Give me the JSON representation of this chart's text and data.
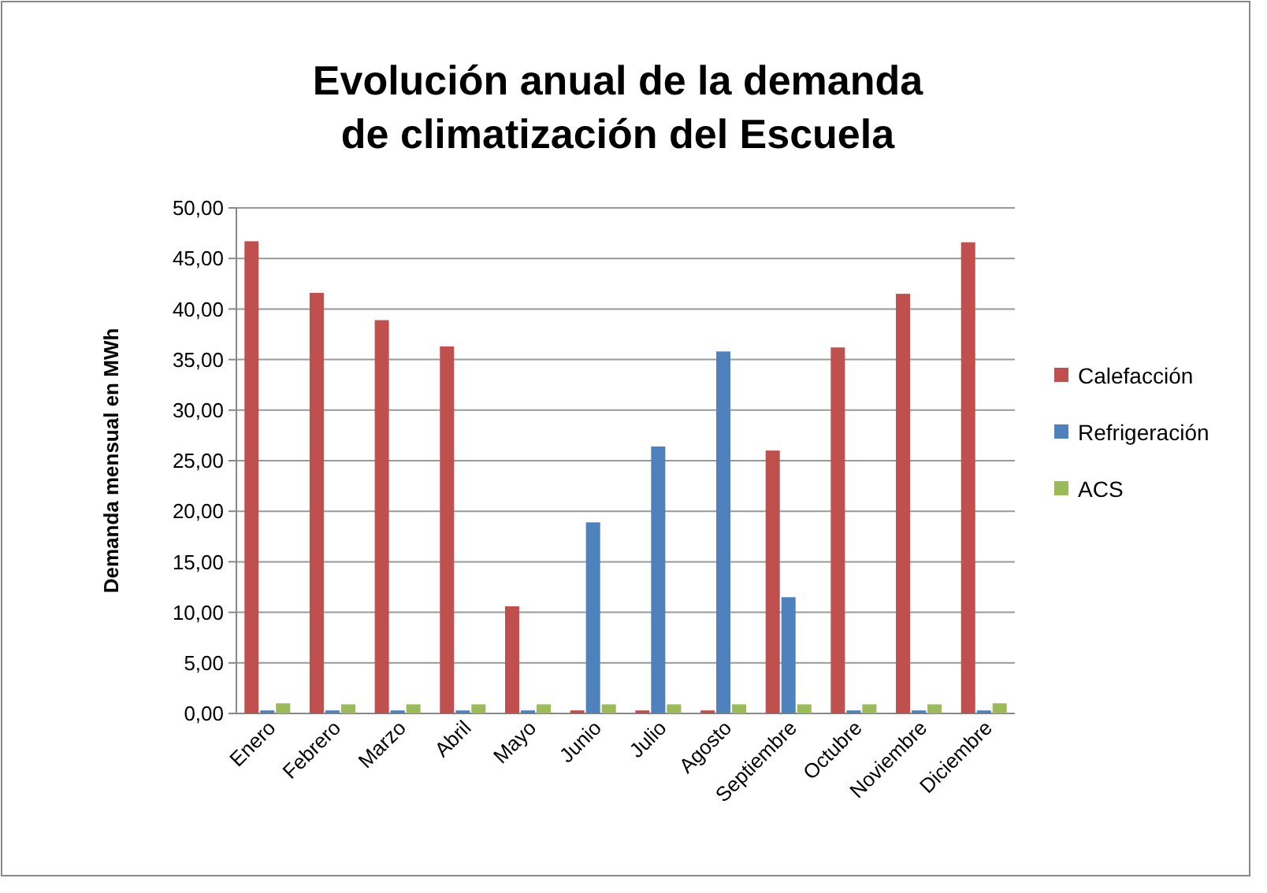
{
  "chart_data": {
    "type": "bar",
    "title": "Evolución anual de la demanda de climatización del Escuela",
    "ylabel": "Demanda mensual en MWh",
    "categories": [
      "Enero",
      "Febrero",
      "Marzo",
      "Abril",
      "Mayo",
      "Junio",
      "Julio",
      "Agosto",
      "Septiembre",
      "Octubre",
      "Noviembre",
      "Diciembre"
    ],
    "series": [
      {
        "name": "Calefacción",
        "color": "#c0504d",
        "values": [
          46.7,
          41.6,
          38.9,
          36.3,
          10.6,
          0.3,
          0.3,
          0.3,
          26.0,
          36.2,
          41.5,
          46.6
        ]
      },
      {
        "name": "Refrigeración",
        "color": "#4f81bd",
        "values": [
          0.3,
          0.3,
          0.3,
          0.3,
          0.3,
          18.9,
          26.4,
          35.8,
          11.5,
          0.3,
          0.3,
          0.3
        ]
      },
      {
        "name": "ACS",
        "color": "#9bbb59",
        "values": [
          1.0,
          0.9,
          0.9,
          0.9,
          0.9,
          0.9,
          0.9,
          0.9,
          0.9,
          0.9,
          0.9,
          1.0
        ]
      }
    ],
    "ylim": [
      0,
      50
    ],
    "yticks": [
      {
        "value": 0,
        "label": "0,00"
      },
      {
        "value": 5,
        "label": "5,00"
      },
      {
        "value": 10,
        "label": "10,00"
      },
      {
        "value": 15,
        "label": "15,00"
      },
      {
        "value": 20,
        "label": "20,00"
      },
      {
        "value": 25,
        "label": "25,00"
      },
      {
        "value": 30,
        "label": "30,00"
      },
      {
        "value": 35,
        "label": "35,00"
      },
      {
        "value": 40,
        "label": "40,00"
      },
      {
        "value": 45,
        "label": "45,00"
      },
      {
        "value": 50,
        "label": "50,00"
      }
    ],
    "grid": "y",
    "legend": "right"
  }
}
